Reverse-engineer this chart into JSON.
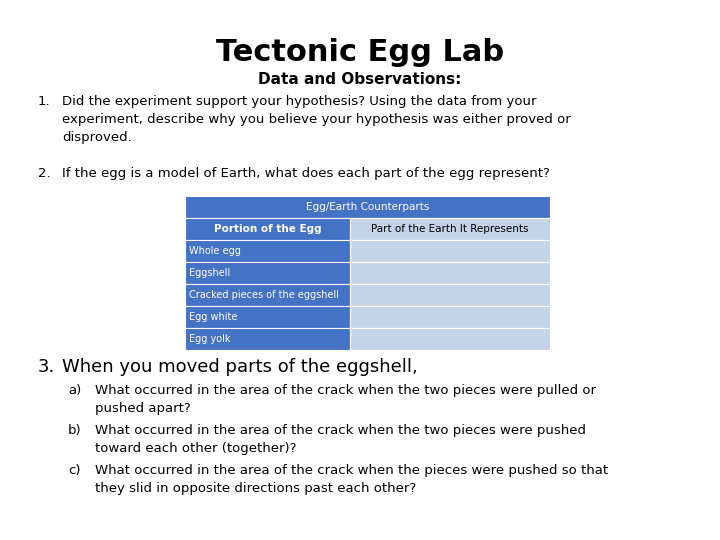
{
  "title": "Tectonic Egg Lab",
  "subtitle": "Data and Observations:",
  "background_color": "#ffffff",
  "title_fontsize": 22,
  "subtitle_fontsize": 11,
  "body_fontsize": 9.5,
  "item3_fontsize": 13,
  "items": [
    {
      "number": "1.",
      "text": "Did the experiment support your hypothesis? Using the data from your\nexperiment, describe why you believe your hypothesis was either proved or\ndisproved."
    },
    {
      "number": "2.",
      "text": "If the egg is a model of Earth, what does each part of the egg represent?"
    }
  ],
  "table": {
    "header_text": "Egg/Earth Counterparts",
    "header_bg": "#4472C4",
    "header_fg": "#ffffff",
    "col1_header": "Portion of the Egg",
    "col2_header": "Part of the Earth It Represents",
    "col_header_bg": "#4472C4",
    "col_header_fg": "#ffffff",
    "row_bg_dark": "#4472C4",
    "row_bg_light": "#C5D3E8",
    "row_fg_dark": "#ffffff",
    "row_fg_light": "#000000",
    "rows": [
      "Whole egg",
      "Eggshell",
      "Cracked pieces of the eggshell",
      "Egg white",
      "Egg yolk"
    ]
  },
  "item3": {
    "number": "3.",
    "text": "When you moved parts of the eggshell,",
    "fontsize": 13
  },
  "subitems": [
    {
      "label": "a)",
      "text": "What occurred in the area of the crack when the two pieces were pulled or\npushed apart?"
    },
    {
      "label": "b)",
      "text": "What occurred in the area of the crack when the two pieces were pushed\ntoward each other (together)?"
    },
    {
      "label": "c)",
      "text": "What occurred in the area of the crack when the pieces were pushed so that\nthey slid in opposite directions past each other?"
    }
  ]
}
